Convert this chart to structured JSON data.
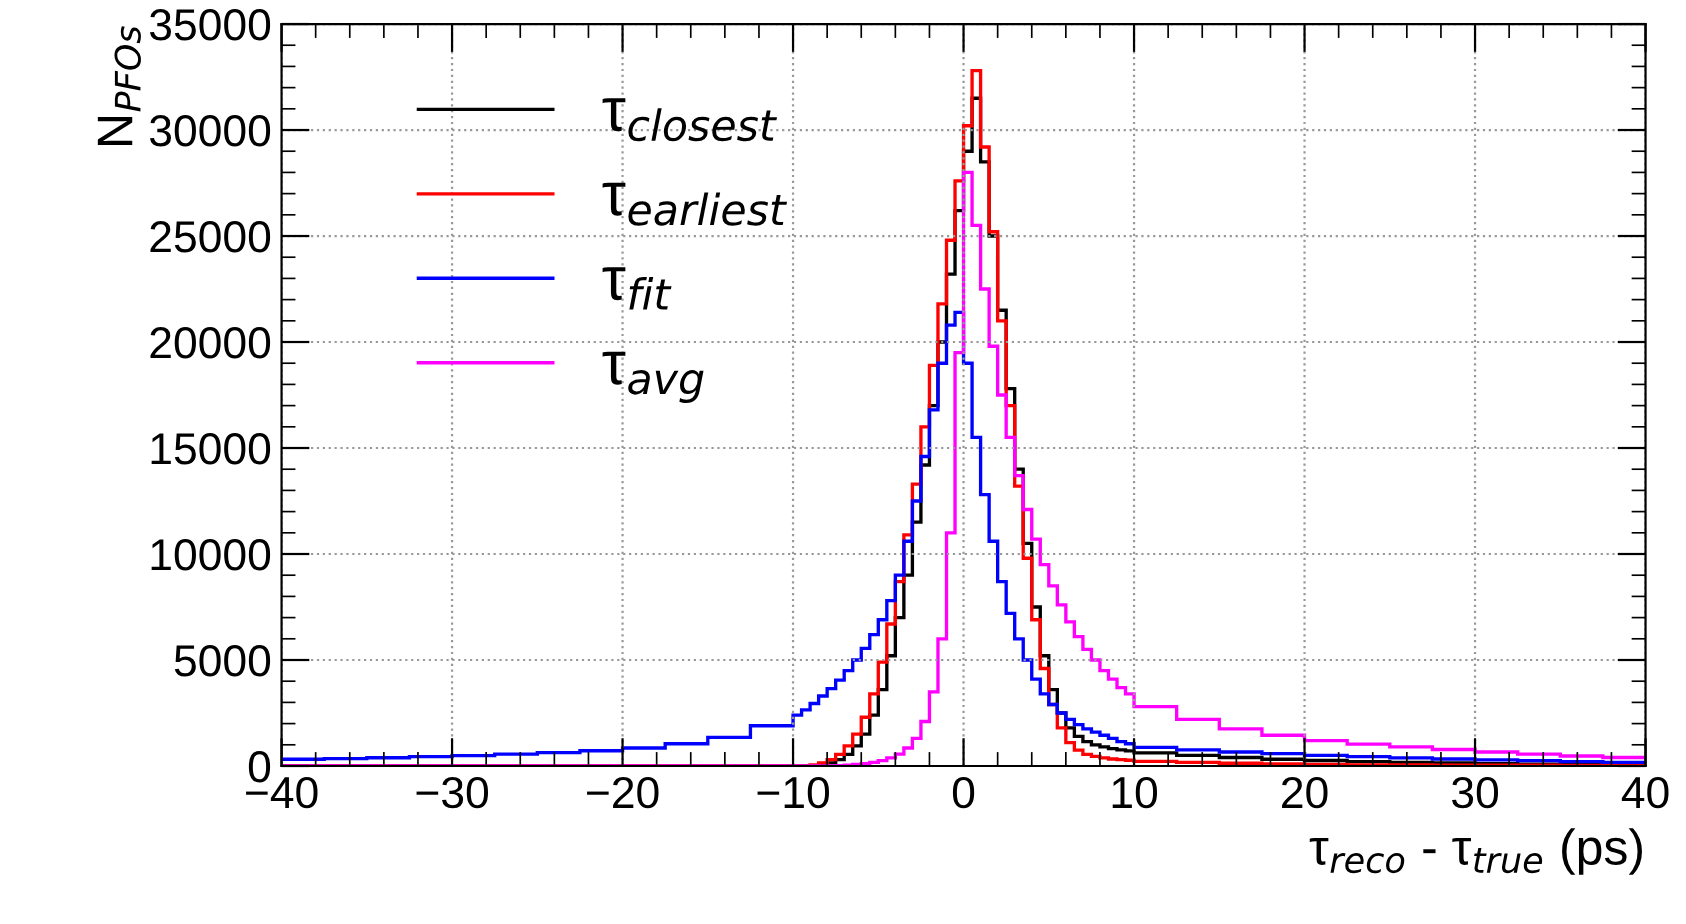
{
  "chart_data": {
    "type": "histogram",
    "xlabel": "τ$_{reco}$ - τ$_{true}$ (ps)",
    "ylabel": "N$_{PFOs}$",
    "xlim": [
      -40,
      40
    ],
    "ylim": [
      0,
      35000
    ],
    "xticks": [
      {
        "value": -40,
        "label": "−40"
      },
      {
        "value": -30,
        "label": "−30"
      },
      {
        "value": -20,
        "label": "−20"
      },
      {
        "value": -10,
        "label": "−10"
      },
      0,
      10,
      20,
      30,
      40
    ],
    "yticks": [
      0,
      5000,
      10000,
      15000,
      20000,
      25000,
      30000,
      35000
    ],
    "grid": true,
    "legend": "top left",
    "bins": [
      -40,
      -37.5,
      -35,
      -32.5,
      -30,
      -27.5,
      -25,
      -22.5,
      -20,
      -17.5,
      -15,
      -12.5,
      -10,
      -9.5,
      -9,
      -8.5,
      -8,
      -7.5,
      -7,
      -6.5,
      -6,
      -5.5,
      -5,
      -4.5,
      -4,
      -3.5,
      -3,
      -2.5,
      -2,
      -1.5,
      -1,
      -0.5,
      0,
      0.5,
      1,
      1.5,
      2,
      2.5,
      3,
      3.5,
      4,
      4.5,
      5,
      5.5,
      6,
      6.5,
      7,
      7.5,
      8,
      8.5,
      9,
      9.5,
      10,
      12.5,
      15,
      17.5,
      20,
      22.5,
      25,
      27.5,
      30,
      32.5,
      35,
      37.5,
      40
    ],
    "series": [
      {
        "name": "τ$_{closest}$",
        "color": "#000000",
        "values": [
          0,
          0,
          0,
          0,
          0,
          0,
          0,
          0,
          0,
          0,
          0,
          0,
          0,
          0,
          20,
          60,
          150,
          300,
          550,
          950,
          1500,
          2400,
          3600,
          5200,
          7000,
          9000,
          11500,
          14200,
          17000,
          20000,
          23200,
          26200,
          29000,
          31500,
          28500,
          25000,
          21500,
          17800,
          14000,
          10500,
          7500,
          5200,
          3600,
          2500,
          1800,
          1400,
          1150,
          1000,
          900,
          820,
          760,
          710,
          620,
          500,
          400,
          320,
          260,
          210,
          170,
          140,
          110,
          90,
          70,
          60
        ]
      },
      {
        "name": "τ$_{earliest}$",
        "color": "#ff0000",
        "values": [
          0,
          0,
          0,
          0,
          0,
          0,
          0,
          0,
          0,
          0,
          0,
          0,
          0,
          0,
          50,
          150,
          300,
          550,
          950,
          1500,
          2300,
          3400,
          4900,
          6700,
          8700,
          10900,
          13300,
          16000,
          18900,
          21800,
          24800,
          27600,
          30200,
          32800,
          29200,
          25200,
          21000,
          17000,
          13200,
          9800,
          6900,
          4600,
          2900,
          1800,
          1100,
          750,
          550,
          450,
          380,
          330,
          300,
          270,
          220,
          170,
          130,
          100,
          80,
          65,
          55,
          45,
          40,
          35,
          30,
          25
        ]
      },
      {
        "name": "τ$_{fit}$",
        "color": "#0000ff",
        "values": [
          320,
          350,
          390,
          440,
          490,
          560,
          630,
          720,
          850,
          1050,
          1350,
          1900,
          2400,
          2650,
          2950,
          3300,
          3650,
          4050,
          4500,
          5000,
          5550,
          6200,
          6900,
          7800,
          9000,
          10600,
          12500,
          14600,
          16800,
          19000,
          20800,
          21400,
          19000,
          15500,
          12800,
          10600,
          8700,
          7200,
          6000,
          5000,
          4100,
          3400,
          2900,
          2500,
          2200,
          1950,
          1750,
          1600,
          1450,
          1300,
          1150,
          1050,
          880,
          760,
          660,
          580,
          500,
          440,
          380,
          330,
          290,
          250,
          210,
          170
        ]
      },
      {
        "name": "τ$_{avg}$",
        "color": "#ff00ff",
        "values": [
          0,
          0,
          0,
          0,
          0,
          0,
          0,
          0,
          0,
          0,
          0,
          0,
          0,
          0,
          0,
          0,
          10,
          20,
          40,
          70,
          110,
          170,
          250,
          380,
          560,
          850,
          1300,
          2100,
          3500,
          6000,
          11000,
          19500,
          28000,
          25500,
          22500,
          19800,
          17500,
          15500,
          13700,
          12100,
          10700,
          9500,
          8500,
          7600,
          6800,
          6100,
          5500,
          5000,
          4500,
          4100,
          3700,
          3400,
          2800,
          2200,
          1750,
          1450,
          1200,
          1030,
          900,
          780,
          660,
          560,
          470,
          400
        ]
      }
    ]
  }
}
